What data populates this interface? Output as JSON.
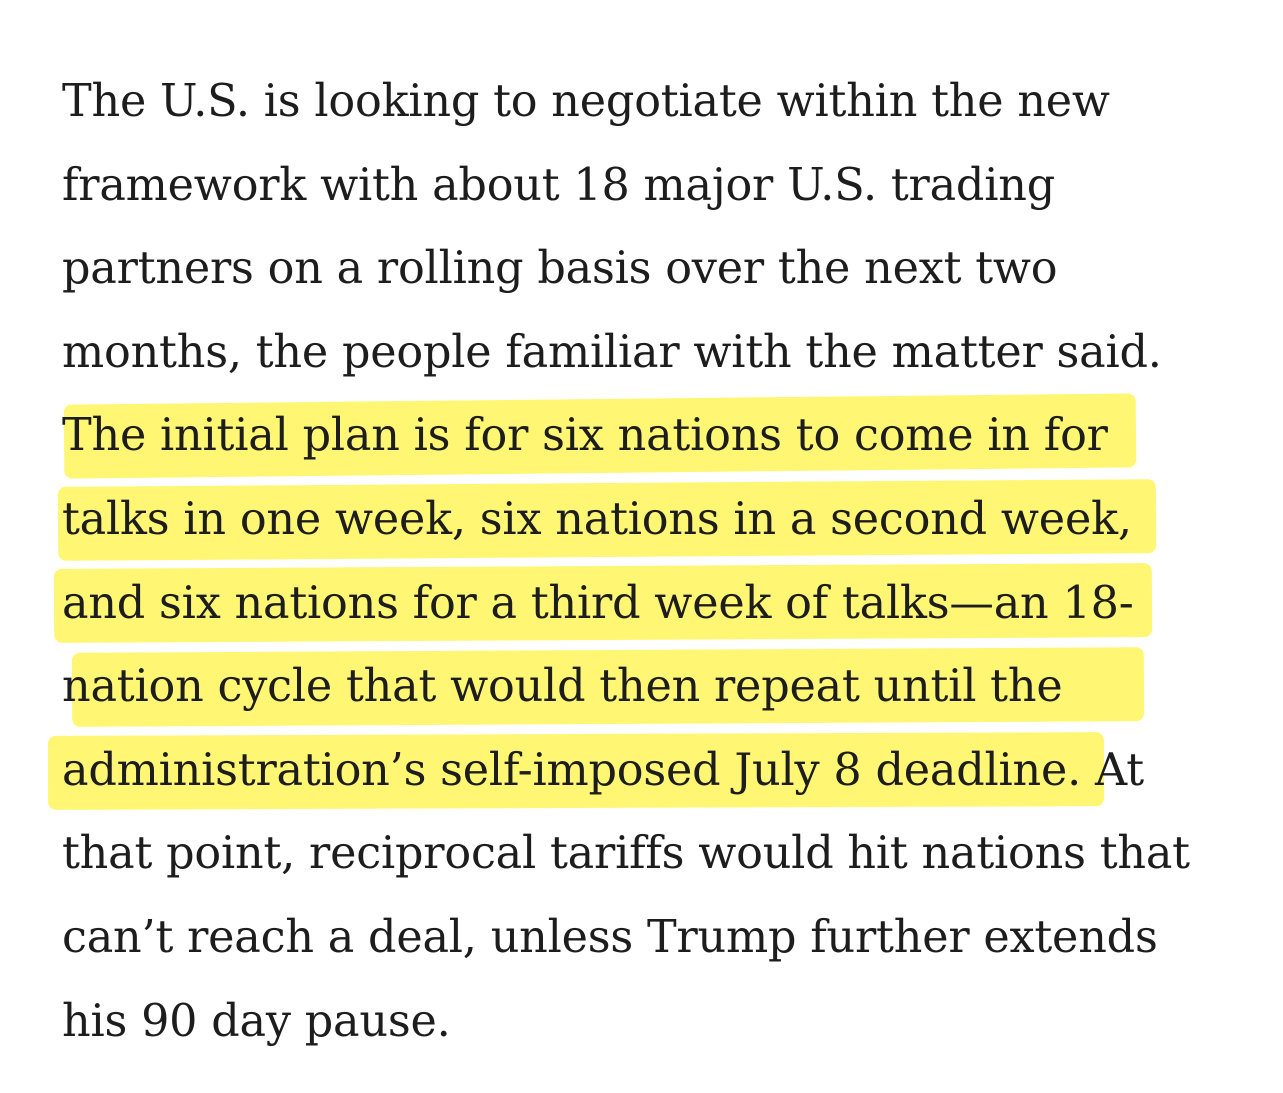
{
  "article": {
    "paragraph_lines": [
      "The U.S. is looking to negotiate within the new",
      "framework with about 18 major U.S. trading",
      "partners on a rolling basis over the next two",
      "months, the people familiar with the matter said.",
      "The initial plan is for six nations to come in for",
      "talks in one week, six nations in a second week,",
      "and six nations for a third week of talks—an 18-",
      "nation cycle that would then repeat until the",
      "administration’s self-imposed July 8 deadline",
      "that point, reciprocal tariffs would hit nations that",
      "can’t reach a deal, unless Trump further extends",
      "his 90 day pause."
    ],
    "line9_tail": ". At",
    "highlight_color": "#fff550"
  }
}
